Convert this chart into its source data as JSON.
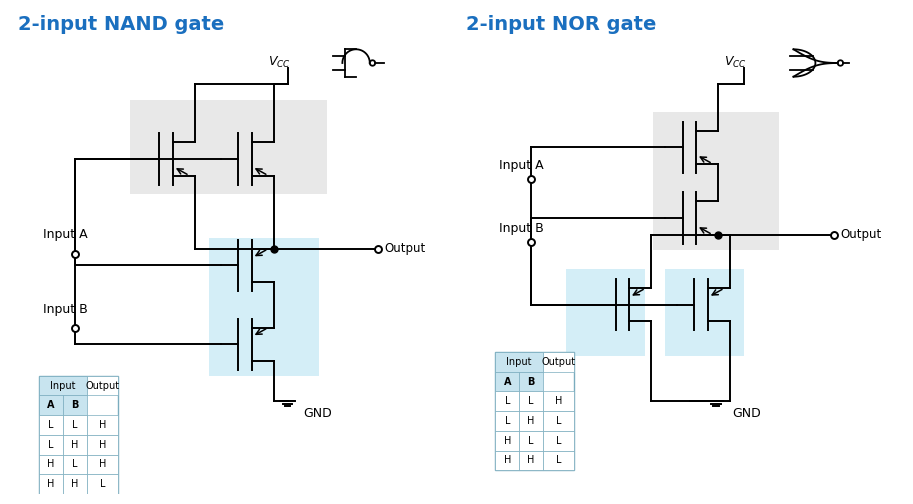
{
  "title_nand": "2-input NAND gate",
  "title_nor": "2-input NOR gate",
  "title_color": "#1A6FBF",
  "title_fontsize": 14,
  "bg_color": "#ffffff",
  "panel_bg": "#f8f8f8",
  "border_color": "#aaaaaa",
  "gray_highlight": "#cccccc",
  "blue_highlight": "#aadff0",
  "nand_truth": [
    [
      "L",
      "L",
      "H"
    ],
    [
      "L",
      "H",
      "H"
    ],
    [
      "H",
      "L",
      "H"
    ],
    [
      "H",
      "H",
      "L"
    ]
  ],
  "nor_truth": [
    [
      "L",
      "L",
      "H"
    ],
    [
      "L",
      "H",
      "L"
    ],
    [
      "H",
      "L",
      "L"
    ],
    [
      "H",
      "H",
      "L"
    ]
  ]
}
